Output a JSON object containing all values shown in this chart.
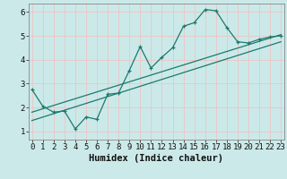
{
  "xlabel": "Humidex (Indice chaleur)",
  "bg_color": "#cce9e9",
  "grid_color": "#e8c8c8",
  "line_color": "#1a7a6e",
  "x_data": [
    0,
    1,
    2,
    3,
    4,
    5,
    6,
    7,
    8,
    9,
    10,
    11,
    12,
    13,
    14,
    15,
    16,
    17,
    18,
    19,
    20,
    21,
    22,
    23
  ],
  "y_data": [
    2.75,
    2.05,
    1.8,
    1.85,
    1.1,
    1.6,
    1.5,
    2.55,
    2.6,
    3.55,
    4.55,
    3.65,
    4.1,
    4.5,
    5.4,
    5.55,
    6.1,
    6.05,
    5.35,
    4.75,
    4.7,
    4.85,
    4.95,
    5.0
  ],
  "trend1_x": [
    0,
    23
  ],
  "trend1_y": [
    1.8,
    5.05
  ],
  "trend2_x": [
    0,
    23
  ],
  "trend2_y": [
    1.45,
    4.75
  ],
  "xlim": [
    -0.3,
    23.3
  ],
  "ylim": [
    0.65,
    6.35
  ],
  "yticks": [
    1,
    2,
    3,
    4,
    5,
    6
  ],
  "xticks": [
    0,
    1,
    2,
    3,
    4,
    5,
    6,
    7,
    8,
    9,
    10,
    11,
    12,
    13,
    14,
    15,
    16,
    17,
    18,
    19,
    20,
    21,
    22,
    23
  ],
  "tick_fontsize": 6.5,
  "xlabel_fontsize": 7.5,
  "spine_color": "#888888",
  "marker_size": 3.5,
  "line_width": 0.9
}
